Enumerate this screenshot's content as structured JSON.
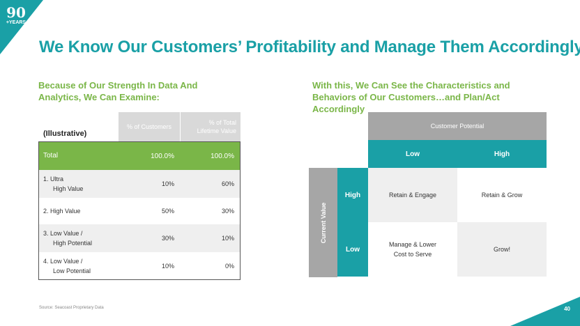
{
  "logo": {
    "number": "90",
    "label": "+YEARS"
  },
  "page_number": "40",
  "title": "We Know Our Customers’ Profitability and Manage Them Accordingly",
  "left_heading": [
    "Because of Our Strength In Data And",
    "Analytics, We Can Examine:"
  ],
  "right_heading": [
    "With this, We Can See the Characteristics and",
    "Behaviors of Our Customers…and Plan/Act Accordingly"
  ],
  "table": {
    "note": "(Illustrative)",
    "col1": "% of Customers",
    "col2": [
      "% of Total",
      "Lifetime Value"
    ],
    "total": {
      "label": "Total",
      "v1": "100.0%",
      "v2": "100.0%"
    },
    "rows": [
      {
        "label": [
          "1.  Ultra",
          "High Value"
        ],
        "v1": "10%",
        "v2": "60%"
      },
      {
        "label": [
          "2.  High Value"
        ],
        "v1": "50%",
        "v2": "30%"
      },
      {
        "label": [
          "3.  Low Value /",
          "High Potential"
        ],
        "v1": "30%",
        "v2": "10%"
      },
      {
        "label": [
          "4.  Low Value /",
          "Low Potential"
        ],
        "v1": "10%",
        "v2": "0%"
      }
    ]
  },
  "matrix": {
    "top_header": "Customer Potential",
    "cols": [
      "Low",
      "High"
    ],
    "side_header": "Current Value",
    "rows": [
      "High",
      "Low"
    ],
    "cells": [
      [
        "Retain & Engage",
        "Retain & Grow"
      ],
      [
        [
          "Manage & Lower",
          "Cost to Serve"
        ],
        "Grow!"
      ]
    ]
  },
  "source": "Source: Seacoast Proprietary Data",
  "colors": {
    "teal": "#1aa0a6",
    "green": "#7ab648",
    "gray": "#a6a6a6"
  }
}
